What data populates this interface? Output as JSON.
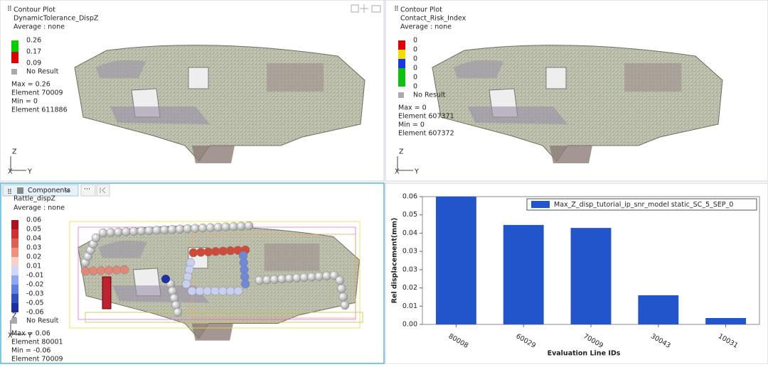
{
  "panels": [
    {
      "title": "Contour Plot",
      "result": "DynamicTolerance_DispZ",
      "average": "Average : none",
      "legend_labels": [
        "0.26",
        "0.17",
        "0.09"
      ],
      "legend_colors": [
        "#00d000",
        "#e00000"
      ],
      "no_result": "No Result",
      "stats": [
        "Max =  0.26",
        "Element 70009",
        "Min =  0",
        "Element 611886"
      ],
      "axes": [
        "Z",
        "X",
        "Y"
      ]
    },
    {
      "title": "Contour Plot",
      "result": "Contact_Risk_Index",
      "average": "Average : none",
      "legend_labels": [
        "0",
        "0",
        "0",
        "0",
        "0",
        "0"
      ],
      "legend_colors": [
        "#e00000",
        "#f0e000",
        "#1838e8",
        "#10c010",
        "#10c010"
      ],
      "no_result": "No Result",
      "stats": [
        "Max =  0",
        "Element 607371",
        "Min =  0",
        "Element 607372"
      ],
      "axes": [
        "Z",
        "X",
        "Y"
      ]
    },
    {
      "result": "Rattle_dispZ",
      "average": "Average : none",
      "legend_labels": [
        "0.06",
        "0.05",
        "0.04",
        "0.03",
        "0.02",
        "0.01",
        "-0.01",
        "-0.02",
        "-0.03",
        "-0.05",
        "-0.06"
      ],
      "legend_colors": [
        "#b01020",
        "#d03030",
        "#e06050",
        "#f09080",
        "#f8d0c8",
        "#d0d8f8",
        "#90a8f0",
        "#6080e0",
        "#3050c0",
        "#1830a0"
      ],
      "no_result": "No Result",
      "stats": [
        "Max = 0.06",
        "Element 80001",
        "Min = -0.06",
        "Element 70009"
      ],
      "axes": [
        "Z",
        "X",
        "Y"
      ]
    }
  ],
  "toolbar": {
    "components": "Components"
  },
  "chart_data": {
    "type": "bar",
    "x_label": "Evaluation Line IDs",
    "y_label": "Rel displacement(mm)",
    "categories": [
      "80008",
      "60029",
      "70009",
      "30043",
      "10031"
    ],
    "series": [
      {
        "name": "Max_Z_disp_tutorial_ip_snr_model static_SC_5_SEP_0",
        "color": "#2255cc",
        "values": [
          0.06,
          0.0467,
          0.0453,
          0.0137,
          0.003
        ]
      }
    ],
    "ylim": [
      0,
      0.06
    ],
    "yticks": [
      {
        "value": 0,
        "label": "0.00"
      },
      {
        "value": 0.00857,
        "label": "0.01"
      },
      {
        "value": 0.01714,
        "label": "0.02"
      },
      {
        "value": 0.02571,
        "label": "0.03"
      },
      {
        "value": 0.03429,
        "label": "0.03"
      },
      {
        "value": 0.04286,
        "label": "0.04"
      },
      {
        "value": 0.05143,
        "label": "0.05"
      },
      {
        "value": 0.06,
        "label": "0.06"
      }
    ],
    "legend": "top-right"
  }
}
